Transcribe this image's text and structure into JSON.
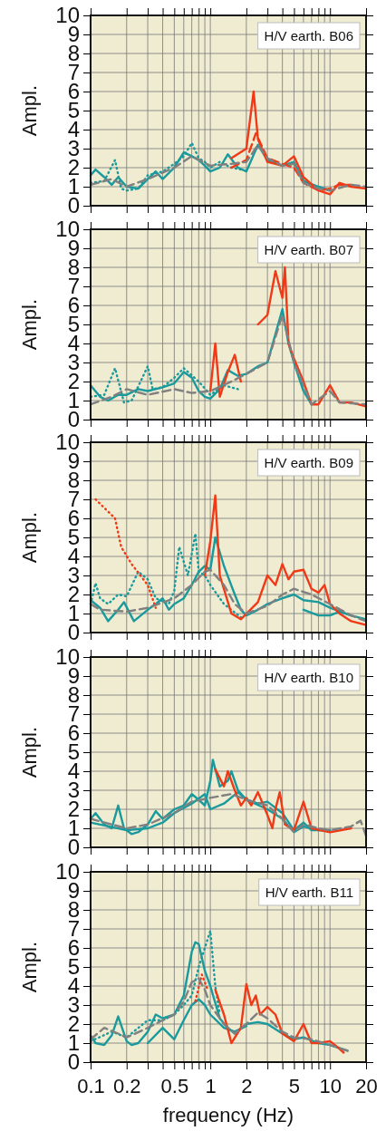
{
  "chart_data": [
    {
      "type": "line",
      "title": "H/V earth. B06",
      "ylabel": "Ampl.",
      "log": "x",
      "grid": true,
      "tick_labels": "y",
      "xlim": [
        0.1,
        20
      ],
      "ylim": [
        0,
        10
      ],
      "xticks": [
        {
          "value": 0.1,
          "label": null
        },
        {
          "value": 0.2,
          "label": null
        },
        {
          "value": 0.3,
          "label": null
        },
        {
          "value": 0.4,
          "label": null
        },
        {
          "value": 0.5,
          "label": null
        },
        {
          "value": 0.6,
          "label": null
        },
        {
          "value": 0.7,
          "label": null
        },
        {
          "value": 0.8,
          "label": null
        },
        {
          "value": 0.9,
          "label": null
        },
        {
          "value": 1,
          "label": null
        },
        {
          "value": 2,
          "label": null
        },
        {
          "value": 3,
          "label": null
        },
        {
          "value": 4,
          "label": null
        },
        {
          "value": 5,
          "label": null
        },
        {
          "value": 6,
          "label": null
        },
        {
          "value": 7,
          "label": null
        },
        {
          "value": 8,
          "label": null
        },
        {
          "value": 9,
          "label": null
        },
        {
          "value": 10,
          "label": null
        },
        {
          "value": 20,
          "label": null
        }
      ],
      "yticks": [
        0,
        1,
        2,
        3,
        4,
        5,
        6,
        7,
        8,
        9,
        10
      ],
      "series": [
        {
          "color": "#1a9a9c",
          "line_style": "solid",
          "x": [
            0.1,
            0.11,
            0.13,
            0.15,
            0.17,
            0.2,
            0.25,
            0.3,
            0.35,
            0.4,
            0.5,
            0.6,
            0.7,
            0.8,
            0.9,
            1,
            1.2,
            1.4,
            1.7,
            2,
            2.5,
            3,
            4,
            5,
            6,
            8,
            10
          ],
          "values": [
            1.6,
            1.9,
            1.5,
            1.1,
            1.5,
            1.0,
            0.9,
            1.4,
            1.8,
            1.4,
            2.0,
            2.8,
            2.6,
            2.4,
            2.1,
            1.8,
            2.0,
            2.7,
            2.0,
            1.8,
            3.2,
            2.4,
            2.1,
            2.3,
            1.3,
            1.0,
            0.8
          ]
        },
        {
          "color": "#1a9a9c",
          "line_style": "dotted",
          "x": [
            0.1,
            0.13,
            0.16,
            0.18,
            0.2,
            0.25,
            0.3,
            0.4,
            0.5,
            0.6,
            0.7,
            0.8,
            0.9,
            1,
            1.2,
            1.5,
            1.8
          ],
          "values": [
            1.2,
            1.3,
            2.4,
            0.9,
            0.8,
            0.9,
            1.6,
            1.8,
            2.2,
            2.6,
            3.3,
            2.5,
            2.3,
            2.0,
            2.3,
            2.0,
            1.9
          ]
        },
        {
          "color": "#f03a17",
          "line_style": "solid",
          "x": [
            1.5,
            2,
            2.3,
            2.5,
            3,
            4,
            5,
            6,
            8,
            10,
            12,
            15,
            20
          ],
          "values": [
            2.5,
            3.0,
            6.0,
            3.5,
            2.3,
            2.1,
            2.6,
            1.5,
            0.8,
            0.6,
            1.2,
            1.0,
            0.9
          ]
        },
        {
          "color": "#f03a17",
          "line_style": "dashed",
          "x": [
            1.5,
            2,
            2.4,
            3,
            4,
            5,
            6,
            8,
            10,
            12,
            15
          ],
          "values": [
            2.0,
            2.4,
            3.8,
            2.5,
            2.2,
            2.0,
            1.2,
            0.8,
            0.9,
            1.1,
            1.1
          ]
        },
        {
          "color": "#808080",
          "line_style": "dashed",
          "x": [
            0.1,
            0.15,
            0.2,
            0.3,
            0.5,
            0.7,
            1,
            1.5,
            2,
            2.5,
            3,
            4,
            5,
            6,
            8,
            10,
            15,
            20
          ],
          "values": [
            1.1,
            1.4,
            1.0,
            1.4,
            2.0,
            2.6,
            2.1,
            2.2,
            2.3,
            3.2,
            2.5,
            2.1,
            2.2,
            1.2,
            0.9,
            0.8,
            1.1,
            1.0
          ]
        }
      ]
    },
    {
      "type": "line",
      "title": "H/V earth. B07",
      "ylabel": "Ampl.",
      "log": "x",
      "grid": true,
      "tick_labels": "y",
      "xlim": [
        0.1,
        20
      ],
      "ylim": [
        0,
        10
      ],
      "xticks": [
        {
          "value": 0.1,
          "label": null
        },
        {
          "value": 0.2,
          "label": null
        },
        {
          "value": 0.3,
          "label": null
        },
        {
          "value": 0.4,
          "label": null
        },
        {
          "value": 0.5,
          "label": null
        },
        {
          "value": 0.6,
          "label": null
        },
        {
          "value": 0.7,
          "label": null
        },
        {
          "value": 0.8,
          "label": null
        },
        {
          "value": 0.9,
          "label": null
        },
        {
          "value": 1,
          "label": null
        },
        {
          "value": 2,
          "label": null
        },
        {
          "value": 3,
          "label": null
        },
        {
          "value": 4,
          "label": null
        },
        {
          "value": 5,
          "label": null
        },
        {
          "value": 6,
          "label": null
        },
        {
          "value": 7,
          "label": null
        },
        {
          "value": 8,
          "label": null
        },
        {
          "value": 9,
          "label": null
        },
        {
          "value": 10,
          "label": null
        },
        {
          "value": 20,
          "label": null
        }
      ],
      "yticks": [
        0,
        1,
        2,
        3,
        4,
        5,
        6,
        7,
        8,
        9,
        10
      ],
      "series": [
        {
          "color": "#1a9a9c",
          "line_style": "solid",
          "x": [
            0.1,
            0.12,
            0.14,
            0.17,
            0.2,
            0.25,
            0.3,
            0.4,
            0.5,
            0.6,
            0.7,
            0.8,
            0.9,
            1,
            1.2,
            1.4,
            1.7,
            2,
            2.5,
            3,
            3.5,
            4,
            4.5,
            5,
            6,
            7
          ],
          "values": [
            1.8,
            1.2,
            1.0,
            1.3,
            1.3,
            1.6,
            1.5,
            1.7,
            1.9,
            2.5,
            2.2,
            1.5,
            1.2,
            1.1,
            1.6,
            2.6,
            2.3,
            2.4,
            2.8,
            3.0,
            4.5,
            5.8,
            4.0,
            3.0,
            1.5,
            0.8
          ]
        },
        {
          "color": "#1a9a9c",
          "line_style": "dotted",
          "x": [
            0.1,
            0.13,
            0.16,
            0.19,
            0.22,
            0.3,
            0.33,
            0.4,
            0.5,
            0.6,
            0.8,
            1,
            1.3,
            1.7
          ],
          "values": [
            1.2,
            1.3,
            2.7,
            0.9,
            1.0,
            2.8,
            1.6,
            1.7,
            2.2,
            2.7,
            2.0,
            1.3,
            1.8,
            1.6
          ]
        },
        {
          "color": "#f03a17",
          "line_style": "solid",
          "x": [
            1.0,
            1.1,
            1.2,
            1.4,
            1.6,
            1.8
          ],
          "values": [
            1.5,
            4.0,
            1.2,
            2.5,
            3.4,
            2.0
          ]
        },
        {
          "color": "#f03a17",
          "line_style": "solid",
          "x": [
            2.5,
            3,
            3.5,
            4,
            4.2,
            4.5,
            5,
            6,
            7,
            8,
            10,
            12,
            15,
            20
          ],
          "values": [
            5.0,
            5.5,
            7.8,
            6.4,
            8.0,
            4.0,
            3.2,
            2.0,
            0.8,
            0.8,
            1.8,
            0.9,
            0.9,
            0.7
          ]
        },
        {
          "color": "#808080",
          "line_style": "dashed",
          "x": [
            0.1,
            0.15,
            0.2,
            0.3,
            0.5,
            0.7,
            1,
            1.5,
            2,
            3,
            4,
            5,
            6,
            7,
            10,
            12,
            20
          ],
          "values": [
            0.8,
            1.2,
            1.6,
            1.3,
            1.6,
            1.4,
            1.5,
            2.0,
            2.4,
            3.0,
            5.5,
            3.0,
            1.8,
            0.8,
            1.5,
            0.9,
            0.8
          ]
        }
      ]
    },
    {
      "type": "line",
      "title": "H/V earth. B09",
      "ylabel": "Ampl.",
      "log": "x",
      "grid": true,
      "tick_labels": "y",
      "xlim": [
        0.1,
        20
      ],
      "ylim": [
        0,
        10
      ],
      "xticks": [
        {
          "value": 0.1,
          "label": null
        },
        {
          "value": 0.2,
          "label": null
        },
        {
          "value": 0.3,
          "label": null
        },
        {
          "value": 0.4,
          "label": null
        },
        {
          "value": 0.5,
          "label": null
        },
        {
          "value": 0.6,
          "label": null
        },
        {
          "value": 0.7,
          "label": null
        },
        {
          "value": 0.8,
          "label": null
        },
        {
          "value": 0.9,
          "label": null
        },
        {
          "value": 1,
          "label": null
        },
        {
          "value": 2,
          "label": null
        },
        {
          "value": 3,
          "label": null
        },
        {
          "value": 4,
          "label": null
        },
        {
          "value": 5,
          "label": null
        },
        {
          "value": 6,
          "label": null
        },
        {
          "value": 7,
          "label": null
        },
        {
          "value": 8,
          "label": null
        },
        {
          "value": 9,
          "label": null
        },
        {
          "value": 10,
          "label": null
        },
        {
          "value": 20,
          "label": null
        }
      ],
      "yticks": [
        0,
        1,
        2,
        3,
        4,
        5,
        6,
        7,
        8,
        9,
        10
      ],
      "series": [
        {
          "color": "#1a9a9c",
          "line_style": "solid",
          "x": [
            0.1,
            0.12,
            0.14,
            0.17,
            0.19,
            0.23,
            0.3,
            0.35,
            0.4,
            0.45,
            0.5,
            0.6,
            0.7,
            0.8,
            0.9,
            1,
            1.1,
            1.3,
            1.6,
            1.8,
            2,
            2.5,
            3,
            4,
            5,
            6,
            8,
            10,
            15,
            20
          ],
          "values": [
            1.7,
            1.3,
            0.6,
            1.2,
            1.6,
            0.6,
            1.2,
            1.5,
            1.8,
            1.2,
            1.5,
            1.8,
            2.5,
            3.2,
            3.5,
            3.3,
            5.0,
            3.5,
            2.0,
            1.2,
            0.9,
            1.2,
            1.5,
            1.8,
            2.0,
            1.7,
            1.6,
            1.3,
            0.9,
            0.7
          ]
        },
        {
          "color": "#1a9a9c",
          "line_style": "dotted",
          "x": [
            0.1,
            0.11,
            0.12,
            0.14,
            0.17,
            0.2,
            0.25,
            0.3,
            0.35,
            0.45,
            0.5,
            0.55,
            0.65,
            0.75,
            0.8,
            0.9,
            1,
            1.3,
            1.8
          ],
          "values": [
            1.5,
            2.6,
            1.8,
            1.5,
            2.0,
            1.9,
            3.2,
            2.8,
            1.8,
            1.5,
            2.2,
            4.5,
            3.0,
            5.2,
            3.2,
            3.0,
            2.5,
            1.5,
            0.8
          ]
        },
        {
          "color": "#1a9a9c",
          "line_style": "solid",
          "x": [
            6,
            8,
            10,
            12,
            15
          ],
          "values": [
            1.2,
            0.9,
            0.9,
            1.1,
            0.9
          ]
        },
        {
          "color": "#f03a17",
          "line_style": "dotted",
          "x": [
            0.11,
            0.16,
            0.18,
            0.22,
            0.3,
            0.35
          ],
          "values": [
            7.0,
            6.0,
            4.5,
            3.6,
            2.5,
            1.3
          ]
        },
        {
          "color": "#f03a17",
          "line_style": "solid",
          "x": [
            0.9,
            1.0,
            1.1,
            1.2,
            1.5,
            1.8,
            2.5,
            3,
            3.5,
            4,
            4.5,
            5,
            6,
            7,
            8,
            9,
            10,
            12,
            15,
            20
          ],
          "values": [
            3.0,
            4.8,
            7.2,
            3.0,
            1.0,
            0.7,
            1.6,
            3.0,
            2.5,
            3.6,
            2.8,
            3.2,
            3.3,
            2.3,
            2.1,
            2.5,
            1.5,
            1.0,
            0.6,
            0.4
          ]
        },
        {
          "color": "#808080",
          "line_style": "dashed",
          "x": [
            0.1,
            0.12,
            0.2,
            0.3,
            0.5,
            0.7,
            0.9,
            1,
            1.3,
            1.6,
            2,
            3,
            4,
            5,
            7,
            10,
            15,
            20
          ],
          "values": [
            1.5,
            1.2,
            1.1,
            1.3,
            1.8,
            2.5,
            3.2,
            3.3,
            2.5,
            1.5,
            1.0,
            1.4,
            2.0,
            2.3,
            2.0,
            1.5,
            0.9,
            0.6
          ]
        }
      ]
    },
    {
      "type": "line",
      "title": "H/V earth. B10",
      "ylabel": "Ampl.",
      "log": "x",
      "grid": true,
      "tick_labels": "y",
      "xlim": [
        0.1,
        20
      ],
      "ylim": [
        0,
        10
      ],
      "xticks": [
        {
          "value": 0.1,
          "label": null
        },
        {
          "value": 0.2,
          "label": null
        },
        {
          "value": 0.3,
          "label": null
        },
        {
          "value": 0.4,
          "label": null
        },
        {
          "value": 0.5,
          "label": null
        },
        {
          "value": 0.6,
          "label": null
        },
        {
          "value": 0.7,
          "label": null
        },
        {
          "value": 0.8,
          "label": null
        },
        {
          "value": 0.9,
          "label": null
        },
        {
          "value": 1,
          "label": null
        },
        {
          "value": 2,
          "label": null
        },
        {
          "value": 3,
          "label": null
        },
        {
          "value": 4,
          "label": null
        },
        {
          "value": 5,
          "label": null
        },
        {
          "value": 6,
          "label": null
        },
        {
          "value": 7,
          "label": null
        },
        {
          "value": 8,
          "label": null
        },
        {
          "value": 9,
          "label": null
        },
        {
          "value": 10,
          "label": null
        },
        {
          "value": 20,
          "label": null
        }
      ],
      "yticks": [
        0,
        1,
        2,
        3,
        4,
        5,
        6,
        7,
        8,
        9,
        10
      ],
      "series": [
        {
          "color": "#1a9a9c",
          "line_style": "solid",
          "x": [
            0.1,
            0.11,
            0.13,
            0.15,
            0.17,
            0.19,
            0.22,
            0.25,
            0.3,
            0.35,
            0.4,
            0.5,
            0.6,
            0.7,
            0.8,
            0.9,
            1,
            1.05,
            1.2,
            1.4,
            1.5,
            1.7,
            2,
            2.5,
            3,
            4,
            5,
            6,
            7,
            10
          ],
          "values": [
            1.5,
            1.8,
            1.2,
            1.0,
            2.2,
            1.0,
            0.7,
            0.8,
            1.2,
            1.9,
            1.5,
            2.0,
            2.2,
            2.8,
            2.5,
            2.2,
            3.5,
            4.6,
            3.2,
            3.5,
            4.0,
            3.0,
            2.5,
            2.3,
            2.4,
            1.8,
            0.9,
            1.3,
            0.9,
            0.9
          ]
        },
        {
          "color": "#1a9a9c",
          "line_style": "solid",
          "x": [
            0.1,
            0.2,
            0.3,
            0.4,
            0.5,
            0.7,
            0.9,
            1,
            1.3,
            1.7,
            2,
            3,
            4,
            5,
            6,
            8,
            10
          ],
          "values": [
            1.3,
            0.9,
            1.0,
            1.3,
            1.8,
            2.3,
            2.8,
            2.0,
            2.3,
            2.9,
            2.5,
            2.0,
            1.5,
            0.8,
            1.1,
            0.9,
            0.9
          ]
        },
        {
          "color": "#f03a17",
          "line_style": "solid",
          "x": [
            1.1,
            1.3,
            1.4,
            1.6,
            1.8,
            2,
            2.2,
            2.5,
            3,
            3.3,
            3.5,
            3.8,
            4.2,
            5,
            6,
            7,
            10,
            15
          ],
          "values": [
            4.1,
            3.2,
            4.0,
            3.0,
            2.2,
            2.6,
            2.2,
            2.9,
            1.7,
            1.0,
            2.0,
            2.9,
            1.2,
            0.9,
            2.4,
            1.0,
            0.8,
            1.0
          ]
        },
        {
          "color": "#808080",
          "line_style": "dashed",
          "x": [
            0.1,
            0.15,
            0.2,
            0.3,
            0.5,
            0.7,
            1,
            1.5,
            2,
            3,
            4,
            5,
            6,
            8,
            10,
            15,
            18,
            20
          ],
          "values": [
            1.5,
            1.2,
            1.0,
            1.2,
            1.8,
            2.4,
            2.6,
            2.8,
            2.5,
            2.2,
            1.5,
            0.8,
            1.2,
            1.0,
            0.9,
            1.1,
            1.4,
            0.6
          ]
        }
      ]
    },
    {
      "type": "line",
      "title": "H/V earth. B11",
      "xlabel": "frequency (Hz)",
      "ylabel": "Ampl.",
      "log": "x",
      "grid": true,
      "xlim": [
        0.1,
        20
      ],
      "ylim": [
        0,
        10
      ],
      "xticks": [
        {
          "value": 0.1,
          "label": "0.1"
        },
        {
          "value": 0.2,
          "label": "0.2"
        },
        {
          "value": 0.3,
          "label": null
        },
        {
          "value": 0.4,
          "label": null
        },
        {
          "value": 0.5,
          "label": "0.5"
        },
        {
          "value": 0.6,
          "label": null
        },
        {
          "value": 0.7,
          "label": null
        },
        {
          "value": 0.8,
          "label": null
        },
        {
          "value": 0.9,
          "label": null
        },
        {
          "value": 1,
          "label": "1"
        },
        {
          "value": 2,
          "label": "2"
        },
        {
          "value": 3,
          "label": null
        },
        {
          "value": 4,
          "label": null
        },
        {
          "value": 5,
          "label": "5"
        },
        {
          "value": 6,
          "label": null
        },
        {
          "value": 7,
          "label": null
        },
        {
          "value": 8,
          "label": null
        },
        {
          "value": 9,
          "label": null
        },
        {
          "value": 10,
          "label": "10"
        },
        {
          "value": 20,
          "label": "20"
        }
      ],
      "yticks": [
        0,
        1,
        2,
        3,
        4,
        5,
        6,
        7,
        8,
        9,
        10
      ],
      "series": [
        {
          "color": "#1a9a9c",
          "line_style": "solid",
          "x": [
            0.1,
            0.11,
            0.13,
            0.15,
            0.17,
            0.2,
            0.22,
            0.25,
            0.3,
            0.35,
            0.4,
            0.5,
            0.6,
            0.7,
            0.75,
            0.8,
            0.9,
            1,
            1.2,
            1.4,
            1.6,
            2,
            2.5,
            3,
            4,
            5,
            6,
            8,
            10,
            14
          ],
          "values": [
            1.4,
            1.0,
            0.9,
            1.4,
            2.4,
            1.1,
            0.9,
            1.0,
            1.6,
            2.5,
            2.3,
            2.5,
            3.5,
            5.8,
            6.3,
            6.2,
            4.8,
            4.0,
            2.3,
            1.8,
            1.5,
            2.0,
            2.1,
            2.0,
            1.5,
            1.2,
            1.3,
            1.0,
            0.9,
            0.6
          ]
        },
        {
          "color": "#1a9a9c",
          "line_style": "dotted",
          "x": [
            0.1,
            0.15,
            0.2,
            0.3,
            0.4,
            0.5,
            0.6,
            0.7,
            0.8,
            0.9,
            1,
            1.1,
            1.2
          ],
          "values": [
            1.1,
            1.6,
            1.3,
            2.2,
            2.2,
            2.5,
            3.0,
            3.5,
            5.0,
            6.0,
            6.9,
            4.0,
            2.5
          ]
        },
        {
          "color": "#1a9a9c",
          "line_style": "solid",
          "x": [
            0.3,
            0.4,
            0.5,
            0.6,
            0.7,
            0.8,
            0.9,
            1,
            1.3,
            1.6,
            2
          ],
          "values": [
            1.0,
            1.8,
            1.2,
            2.2,
            3.0,
            3.3,
            3.0,
            2.5,
            1.8,
            1.6,
            1.9
          ]
        },
        {
          "color": "#f03a17",
          "line_style": "dotted",
          "x": [
            0.75,
            0.85,
            0.95
          ],
          "values": [
            3.2,
            4.6,
            3.8
          ]
        },
        {
          "color": "#f03a17",
          "line_style": "solid",
          "x": [
            1.1,
            1.3,
            1.5,
            1.8,
            2,
            2.2,
            2.4,
            2.6,
            3,
            3.5,
            4,
            5,
            6,
            7,
            8,
            10,
            12,
            13
          ],
          "values": [
            3.8,
            2.5,
            1.0,
            1.8,
            4.1,
            3.0,
            3.5,
            2.5,
            2.9,
            2.5,
            1.5,
            1.1,
            2.0,
            1.0,
            1.0,
            1.1,
            0.7,
            0.5
          ]
        },
        {
          "color": "#808080",
          "line_style": "dashed",
          "x": [
            0.1,
            0.13,
            0.17,
            0.2,
            0.3,
            0.4,
            0.5,
            0.6,
            0.7,
            0.8,
            0.9,
            1,
            1.3,
            1.6,
            2,
            2.5,
            3,
            4,
            5,
            7,
            10,
            14
          ],
          "values": [
            1.2,
            1.8,
            1.5,
            1.3,
            1.8,
            2.2,
            2.5,
            3.2,
            4.2,
            4.4,
            3.8,
            3.0,
            2.0,
            1.5,
            2.0,
            2.6,
            2.3,
            1.6,
            1.3,
            1.2,
            0.9,
            0.6
          ]
        }
      ]
    }
  ]
}
